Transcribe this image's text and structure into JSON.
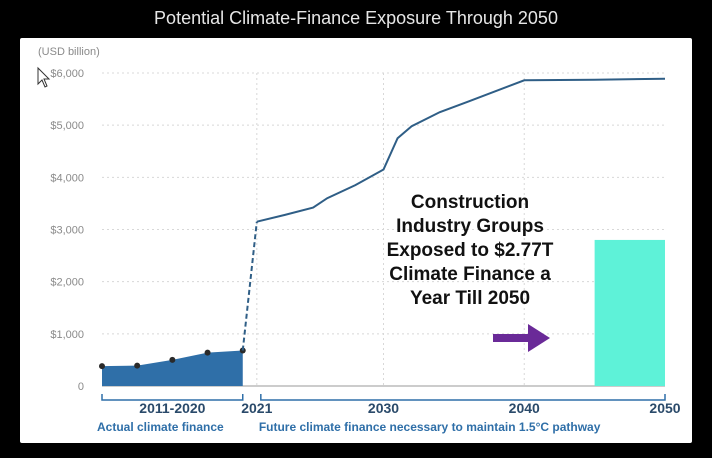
{
  "title": "Potential Climate-Finance Exposure Through 2050",
  "chart_data": {
    "type": "area",
    "unit_label": "(USD billion)",
    "ylim": [
      0,
      6000
    ],
    "y_ticks": [
      {
        "value": 0,
        "label": "0"
      },
      {
        "value": 1000,
        "label": "$1,000"
      },
      {
        "value": 2000,
        "label": "$2,000"
      },
      {
        "value": 3000,
        "label": "$3,000"
      },
      {
        "value": 4000,
        "label": "$4,000"
      },
      {
        "value": 5000,
        "label": "$5,000"
      },
      {
        "value": 6000,
        "label": "$6,000"
      }
    ],
    "xlim": [
      2010,
      2050
    ],
    "x_ticks": [
      {
        "value": 2021,
        "label": "2021"
      },
      {
        "value": 2030,
        "label": "2030"
      },
      {
        "value": 2040,
        "label": "2040"
      },
      {
        "value": 2050,
        "label": "2050"
      }
    ],
    "actual": {
      "period_label": "2011-2020",
      "caption": "Actual climate finance",
      "x": [
        2010,
        2012.5,
        2015,
        2017.5,
        2020
      ],
      "y": [
        380,
        390,
        500,
        640,
        680
      ],
      "color": "#2f6fa8"
    },
    "bridge": {
      "x": [
        2020,
        2021
      ],
      "y": [
        680,
        3150
      ]
    },
    "future": {
      "caption": "Future climate finance necessary to maintain 1.5°C pathway",
      "x": [
        2021,
        2023,
        2025,
        2026,
        2028,
        2030,
        2031,
        2032,
        2034,
        2036,
        2040,
        2045,
        2050
      ],
      "y": [
        3150,
        3280,
        3420,
        3600,
        3850,
        4150,
        4750,
        4980,
        5250,
        5450,
        5860,
        5870,
        5890
      ],
      "color": "#2f5e86"
    },
    "highlight_bar": {
      "x_start": 2045,
      "x_end": 2050,
      "value": 2800,
      "color": "#5ef2d8"
    },
    "arrow_color": "#6a2a98",
    "annotation": [
      "Construction",
      "Industry  Groups",
      "Exposed to $2.77T",
      "Climate Finance a",
      "Year Till 2050"
    ]
  }
}
